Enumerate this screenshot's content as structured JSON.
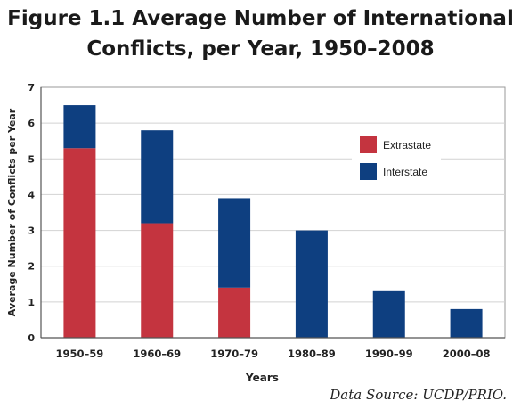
{
  "title": {
    "line1": "Figure 1.1 Average Number of International",
    "line2": "Conflicts, per Year, 1950–2008"
  },
  "source": "Data Source: UCDP/PRIO.",
  "colors": {
    "extrastate": "#c4343f",
    "interstate": "#0e3f80",
    "grid": "#d2d2d2",
    "axis": "#555555"
  },
  "chart_data": {
    "type": "bar",
    "stacked": true,
    "categories": [
      "1950–59",
      "1960–69",
      "1970–79",
      "1980–89",
      "1990–99",
      "2000–08"
    ],
    "series": [
      {
        "name": "Extrastate",
        "values": [
          5.3,
          3.2,
          1.4,
          0,
          0,
          0
        ]
      },
      {
        "name": "Interstate",
        "values": [
          1.2,
          2.6,
          2.5,
          3.0,
          1.3,
          0.8
        ]
      }
    ],
    "xlabel": "Years",
    "ylabel": "Average Number of Conflicts per Year",
    "ylim": [
      0,
      7
    ],
    "yticks": [
      0,
      1,
      2,
      3,
      4,
      5,
      6,
      7
    ],
    "grid": true,
    "legend_position": "upper-right"
  }
}
